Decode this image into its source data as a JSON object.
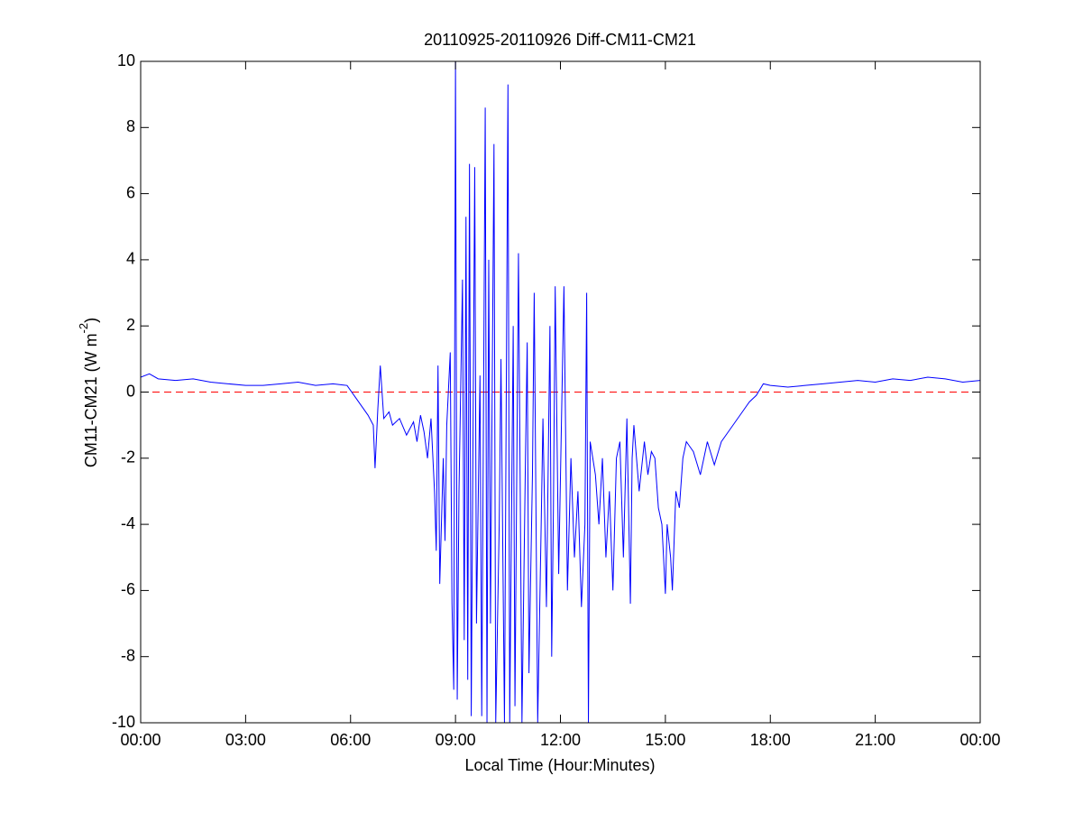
{
  "chart_data": {
    "type": "line",
    "title": "20110925-20110926 Diff-CM11-CM21",
    "xlabel": "Local Time (Hour:Minutes)",
    "ylabel": {
      "text": "CM11-CM21 (W m",
      "sup": "-2",
      "tail": ")"
    },
    "x": [
      0,
      0.25,
      0.5,
      1,
      1.5,
      2,
      2.5,
      3,
      3.5,
      4,
      4.5,
      5,
      5.5,
      5.9,
      6.1,
      6.3,
      6.5,
      6.65,
      6.7,
      6.78,
      6.85,
      6.95,
      7.1,
      7.2,
      7.4,
      7.6,
      7.8,
      7.9,
      8.0,
      8.1,
      8.2,
      8.3,
      8.4,
      8.45,
      8.5,
      8.55,
      8.65,
      8.7,
      8.75,
      8.85,
      8.9,
      8.95,
      9.0,
      9.05,
      9.1,
      9.2,
      9.25,
      9.3,
      9.35,
      9.4,
      9.45,
      9.55,
      9.6,
      9.7,
      9.75,
      9.85,
      9.9,
      9.95,
      10.0,
      10.1,
      10.15,
      10.25,
      10.3,
      10.4,
      10.5,
      10.55,
      10.65,
      10.7,
      10.8,
      10.9,
      11.0,
      11.05,
      11.1,
      11.2,
      11.25,
      11.35,
      11.45,
      11.5,
      11.6,
      11.7,
      11.75,
      11.8,
      11.85,
      11.95,
      12.1,
      12.2,
      12.3,
      12.4,
      12.5,
      12.6,
      12.7,
      12.75,
      12.8,
      12.85,
      13.0,
      13.1,
      13.2,
      13.3,
      13.4,
      13.5,
      13.6,
      13.7,
      13.8,
      13.9,
      14.0,
      14.05,
      14.1,
      14.25,
      14.4,
      14.5,
      14.6,
      14.7,
      14.8,
      14.9,
      15.0,
      15.05,
      15.15,
      15.2,
      15.3,
      15.4,
      15.5,
      15.6,
      15.8,
      16.0,
      16.2,
      16.4,
      16.6,
      16.8,
      17.0,
      17.2,
      17.4,
      17.6,
      17.8,
      18.0,
      18.5,
      19,
      19.5,
      20,
      20.5,
      21,
      21.5,
      22,
      22.5,
      23,
      23.5,
      24
    ],
    "series": [
      {
        "color": "#0000ff",
        "values": [
          0.45,
          0.55,
          0.4,
          0.35,
          0.4,
          0.3,
          0.25,
          0.2,
          0.2,
          0.25,
          0.3,
          0.2,
          0.25,
          0.2,
          -0.1,
          -0.4,
          -0.7,
          -1.0,
          -2.3,
          -0.5,
          0.8,
          -0.8,
          -0.6,
          -1.0,
          -0.8,
          -1.3,
          -0.9,
          -1.5,
          -0.7,
          -1.2,
          -2.0,
          -0.8,
          -3.0,
          -4.8,
          0.8,
          -5.8,
          -2.0,
          -4.5,
          -1.0,
          1.2,
          -6.4,
          -9.0,
          10,
          -9.3,
          -3.0,
          3.4,
          -7.5,
          5.3,
          -8.7,
          6.9,
          -9.8,
          6.8,
          -7.0,
          0.5,
          -9.8,
          8.6,
          -10,
          4.0,
          -7.0,
          7.5,
          -10,
          -4.0,
          1.0,
          -10,
          9.3,
          -10,
          2.0,
          -9.5,
          4.2,
          -10,
          -2.0,
          1.5,
          -8.5,
          -2.5,
          3.0,
          -10,
          -4.0,
          -0.8,
          -6.5,
          2.0,
          -8.0,
          -3.5,
          3.2,
          -5.5,
          3.2,
          -6.0,
          -2.0,
          -5.0,
          -3.0,
          -6.5,
          -4.0,
          3.0,
          -10,
          -1.5,
          -2.5,
          -4.0,
          -2.0,
          -5.0,
          -3.0,
          -6.0,
          -2.0,
          -1.5,
          -5.0,
          -0.8,
          -6.4,
          -2.0,
          -1.0,
          -3.0,
          -1.5,
          -2.5,
          -1.8,
          -2.0,
          -3.5,
          -4.0,
          -6.1,
          -4.0,
          -5.0,
          -6.0,
          -3.0,
          -3.5,
          -2.0,
          -1.5,
          -1.8,
          -2.5,
          -1.5,
          -2.2,
          -1.5,
          -1.2,
          -0.9,
          -0.6,
          -0.3,
          -0.1,
          0.25,
          0.2,
          0.15,
          0.2,
          0.25,
          0.3,
          0.35,
          0.3,
          0.4,
          0.35,
          0.45,
          0.4,
          0.3,
          0.35
        ]
      }
    ],
    "hline": {
      "value": 0,
      "color": "#ff0000",
      "style": "dashed"
    },
    "xlim": [
      0,
      24
    ],
    "xticks": [
      {
        "value": 0,
        "label": "00:00"
      },
      {
        "value": 3,
        "label": "03:00"
      },
      {
        "value": 6,
        "label": "06:00"
      },
      {
        "value": 9,
        "label": "09:00"
      },
      {
        "value": 12,
        "label": "12:00"
      },
      {
        "value": 15,
        "label": "15:00"
      },
      {
        "value": 18,
        "label": "18:00"
      },
      {
        "value": 21,
        "label": "21:00"
      },
      {
        "value": 24,
        "label": "00:00"
      }
    ],
    "ylim": [
      -10,
      10
    ],
    "yticks": [
      -10,
      -8,
      -6,
      -4,
      -2,
      0,
      2,
      4,
      6,
      8,
      10
    ],
    "grid": false
  }
}
